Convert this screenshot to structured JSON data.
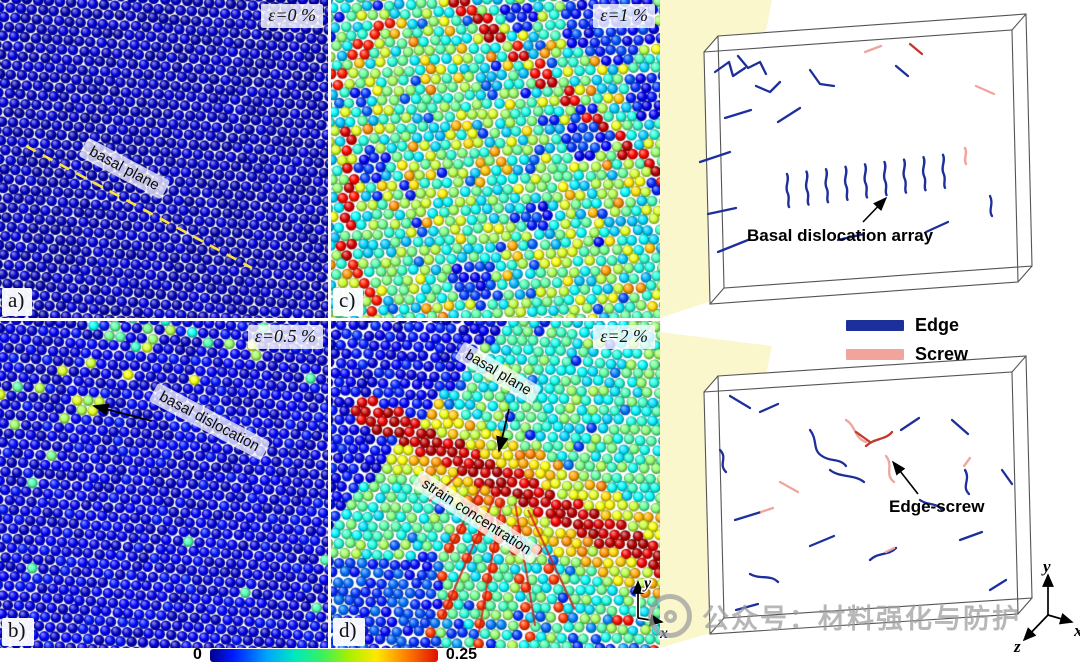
{
  "figure": {
    "panels": [
      {
        "id": "a",
        "label": "a)",
        "strain_label": "ε=0 %",
        "annotations": [
          {
            "text": "basal plane"
          }
        ]
      },
      {
        "id": "b",
        "label": "b)",
        "strain_label": "ε=0.5 %",
        "annotations": [
          {
            "text": "basal dislocation"
          }
        ]
      },
      {
        "id": "c",
        "label": "c)",
        "strain_label": "ε=1 %",
        "annotations": []
      },
      {
        "id": "d",
        "label": "d)",
        "strain_label": "ε=2 %",
        "annotations": [
          {
            "text": "basal plane"
          },
          {
            "text": "strain concentration"
          }
        ]
      }
    ],
    "boxes": [
      {
        "annotation": "Basal dislocation array"
      },
      {
        "annotation": "Edge-screw"
      }
    ],
    "legend": {
      "items": [
        {
          "label": "Edge",
          "color": "#1d2f9b"
        },
        {
          "label": "Screw",
          "color": "#f0a49c"
        }
      ]
    },
    "colorbar": {
      "min": "0",
      "max": "0.25"
    },
    "axes_small": {
      "x": "x",
      "y": "y"
    },
    "axes_triad": {
      "x": "x",
      "y": "y",
      "z": "z"
    },
    "watermark": "公众号：材料强化与防护"
  }
}
